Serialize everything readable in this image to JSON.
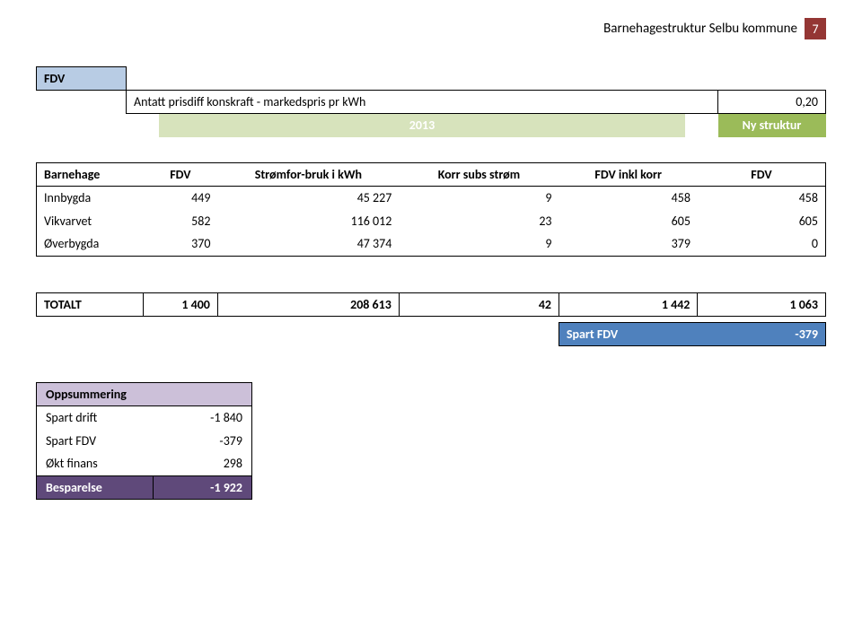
{
  "header": {
    "title": "Barnehagestruktur Selbu kommune",
    "page": "7"
  },
  "fdv": {
    "label": "FDV",
    "desc": "Antatt prisdiff konskraft - markedspris pr kWh",
    "val": "0,20",
    "year": "2013",
    "ny": "Ny struktur"
  },
  "cols": {
    "c0": "Barnehage",
    "c1": "FDV",
    "c2": "Strømfor-bruk i kWh",
    "c3": "Korr subs strøm",
    "c4": "FDV inkl korr",
    "c5": "FDV"
  },
  "rows": [
    {
      "c0": "Innbygda",
      "c1": "449",
      "c2": "45 227",
      "c3": "9",
      "c4": "458",
      "c5": "458"
    },
    {
      "c0": "Vikvarvet",
      "c1": "582",
      "c2": "116 012",
      "c3": "23",
      "c4": "605",
      "c5": "605"
    },
    {
      "c0": "Øverbygda",
      "c1": "370",
      "c2": "47 374",
      "c3": "9",
      "c4": "379",
      "c5": "0"
    }
  ],
  "total": {
    "label": "TOTALT",
    "c1": "1 400",
    "c2": "208 613",
    "c3": "42",
    "c4": "1 442",
    "c5": "1 063"
  },
  "spart": {
    "label": "Spart FDV",
    "val": "-379"
  },
  "summary": {
    "head": "Oppsummering",
    "rows": [
      {
        "label": "Spart drift",
        "val": "-1 840"
      },
      {
        "label": "Spart FDV",
        "val": "-379"
      },
      {
        "label": "Økt finans",
        "val": "298"
      }
    ],
    "final": {
      "label": "Besparelse",
      "val": "-1 922"
    }
  },
  "style": {
    "colors": {
      "header_badge_bg": "#943634",
      "fdv_label_bg": "#b8cce4",
      "year_bg": "#d7e3bc",
      "ny_bg": "#9bbb59",
      "spart_bg": "#4f81bd",
      "summary_head_bg": "#ccc0d9",
      "summary_final_bg": "#5f497a",
      "border": "#000000",
      "page_bg": "#ffffff"
    }
  }
}
